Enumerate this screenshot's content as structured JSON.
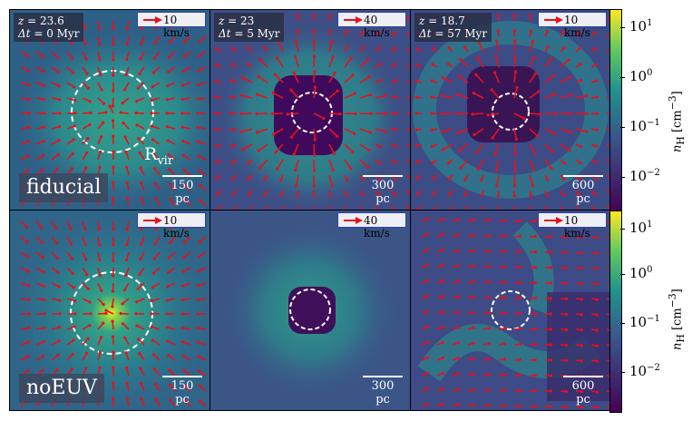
{
  "rows": [
    {
      "name": "fiducial",
      "panels": [
        {
          "label_z": "23.6",
          "label_dt": "0 Myr",
          "velocity": "10 km/s",
          "scale": "150 pc"
        },
        {
          "label_z": "23",
          "label_dt": "5 Myr",
          "velocity": "40 km/s",
          "scale": "300 pc"
        },
        {
          "label_z": "18.7",
          "label_dt": "57 Myr",
          "velocity": "10 km/s",
          "scale": "600 pc"
        }
      ]
    },
    {
      "name": "noEUV",
      "panels": [
        {
          "label_z": "",
          "label_dt": "",
          "velocity": "10 km/s",
          "scale": "150 pc"
        },
        {
          "label_z": "",
          "label_dt": "",
          "velocity": "40 km/s",
          "scale": "300 pc"
        },
        {
          "label_z": "",
          "label_dt": "",
          "velocity": "10 km/s",
          "scale": "600 pc"
        }
      ]
    }
  ],
  "rvir_label": "R",
  "rvir_sub": "vir",
  "colorbar": {
    "label": "n",
    "label_sub": "H",
    "label_unit": "[cm",
    "label_unit_sup": "−3",
    "label_end": "]",
    "ticks": [
      {
        "base": "10",
        "exp": "1"
      },
      {
        "base": "10",
        "exp": "0"
      },
      {
        "base": "10",
        "exp": "−1"
      },
      {
        "base": "10",
        "exp": "−2"
      }
    ]
  },
  "colors": {
    "arrow": "#e8101a",
    "circle": "#ffffff",
    "legend_border": "#2a3fb0"
  }
}
